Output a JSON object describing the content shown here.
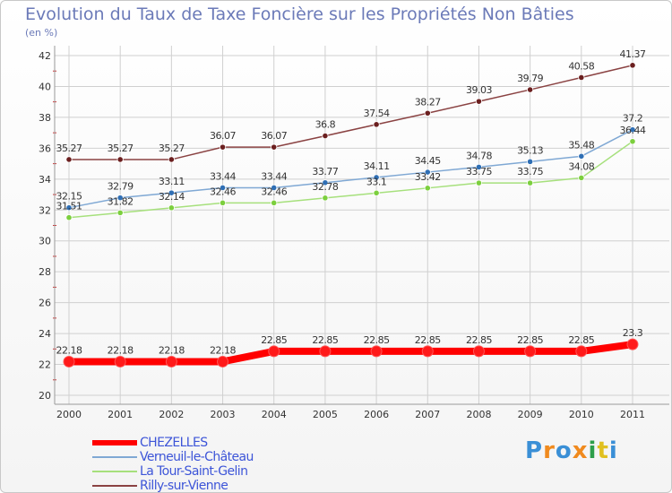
{
  "chart_data": {
    "type": "line",
    "title": "Evolution du Taux de Taxe Foncière sur les Propriétés Non Bâties",
    "ylabel": "(en %)",
    "xlabel": "",
    "ylim": [
      20,
      42
    ],
    "yticks": [
      "20",
      "22",
      "24",
      "26",
      "28",
      "30",
      "32",
      "34",
      "36",
      "38",
      "40",
      "42"
    ],
    "categories": [
      "2000",
      "2001",
      "2002",
      "2003",
      "2004",
      "2005",
      "2006",
      "2007",
      "2008",
      "2009",
      "2010",
      "2011"
    ],
    "series": [
      {
        "name": "CHEZELLES",
        "color": "#ff0000",
        "marker": "#ff1a1a",
        "values": [
          22.18,
          22.18,
          22.18,
          22.18,
          22.85,
          22.85,
          22.85,
          22.85,
          22.85,
          22.85,
          22.85,
          23.3
        ],
        "labels": [
          "22.18",
          "22.18",
          "22.18",
          "22.18",
          "22.85",
          "22.85",
          "22.85",
          "22.85",
          "22.85",
          "22.85",
          "22.85",
          "23.3"
        ]
      },
      {
        "name": "Verneuil-le-Château",
        "color": "#7fa8d4",
        "marker": "#2f6fb5",
        "values": [
          32.15,
          32.79,
          33.11,
          33.44,
          33.44,
          33.77,
          34.11,
          34.45,
          34.78,
          35.13,
          35.48,
          37.2
        ],
        "labels": [
          "32.15",
          "32.79",
          "33.11",
          "33.44",
          "33.44",
          "33.77",
          "34.11",
          "34.45",
          "34.78",
          "35.13",
          "35.48",
          "37.2"
        ]
      },
      {
        "name": "La Tour-Saint-Gelin",
        "color": "#a6e07c",
        "marker": "#7ccf3e",
        "values": [
          31.51,
          31.82,
          32.14,
          32.46,
          32.46,
          32.78,
          33.1,
          33.42,
          33.75,
          33.75,
          34.08,
          36.44
        ],
        "labels": [
          "31.51",
          "31.82",
          "32.14",
          "32.46",
          "32.46",
          "32.78",
          "33.1",
          "33.42",
          "33.75",
          "33.75",
          "34.08",
          "36.44"
        ]
      },
      {
        "name": "Rilly-sur-Vienne",
        "color": "#8a4242",
        "marker": "#6b1f1f",
        "values": [
          35.27,
          35.27,
          35.27,
          36.07,
          36.07,
          36.8,
          37.54,
          38.27,
          39.03,
          39.79,
          40.58,
          41.37
        ],
        "labels": [
          "35.27",
          "35.27",
          "35.27",
          "36.07",
          "36.07",
          "36.8",
          "37.54",
          "38.27",
          "39.03",
          "39.79",
          "40.58",
          "41.37"
        ]
      }
    ],
    "legend": "bottom-left"
  },
  "logo": {
    "text": "Proxiti",
    "colors": [
      "#3a8fd6",
      "#f08a1e",
      "#3a8fd6",
      "#f08a1e",
      "#2e9e4b",
      "#e0c020",
      "#3a8fd6"
    ]
  }
}
